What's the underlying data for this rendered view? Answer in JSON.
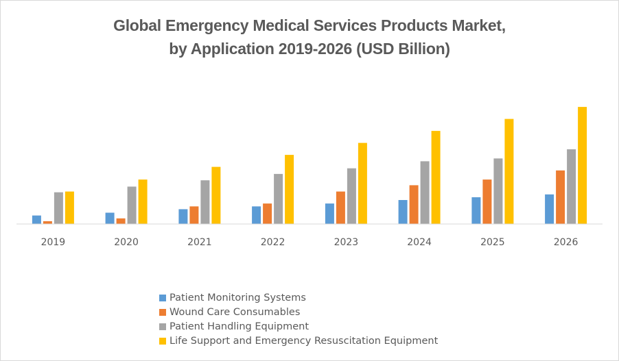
{
  "chart_data": {
    "type": "bar",
    "title": "Global Emergency Medical Services Products Market,",
    "subtitle": "by Application 2019-2026 (USD Billion)",
    "xlabel": "",
    "ylabel": "",
    "y_axis_visible": false,
    "grid": false,
    "legend_position": "bottom",
    "categories": [
      "2019",
      "2020",
      "2021",
      "2022",
      "2023",
      "2024",
      "2025",
      "2026"
    ],
    "ylim": [
      0,
      17
    ],
    "series": [
      {
        "name": "Patient Monitoring Systems",
        "color": "#5B9BD5",
        "values": [
          1.2,
          1.6,
          2.1,
          2.5,
          2.9,
          3.4,
          3.8,
          4.2
        ]
      },
      {
        "name": "Wound Care Consumables",
        "color": "#ED7D31",
        "values": [
          0.4,
          0.8,
          2.5,
          2.9,
          4.6,
          5.5,
          6.3,
          7.6
        ]
      },
      {
        "name": "Patient Handling Equipment",
        "color": "#A5A5A5",
        "values": [
          4.5,
          5.3,
          6.2,
          7.1,
          7.9,
          8.9,
          9.3,
          10.6
        ]
      },
      {
        "name": "Life Support and Emergency Resuscitation Equipment",
        "color": "#FFC000",
        "values": [
          4.6,
          6.3,
          8.1,
          9.8,
          11.5,
          13.2,
          14.9,
          16.6
        ]
      }
    ]
  }
}
